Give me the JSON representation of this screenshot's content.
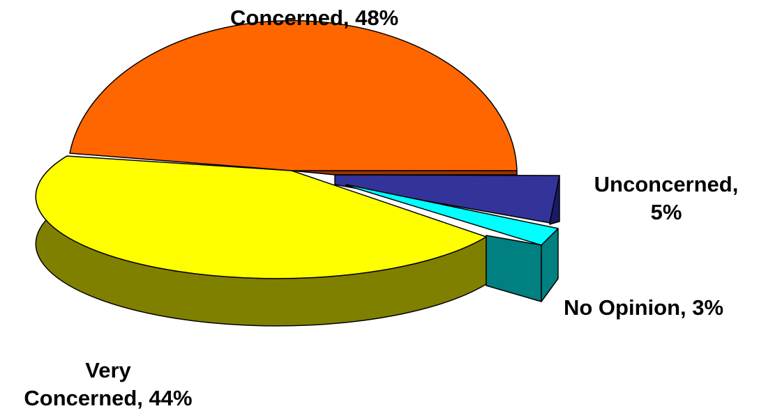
{
  "chart_data": {
    "type": "pie",
    "style": "3d-exploded",
    "slices": [
      {
        "label": "Concerned",
        "value": 48,
        "color": "#FF6600",
        "side_color": "#993300"
      },
      {
        "label": "Unconcerned",
        "value": 5,
        "color": "#333399",
        "side_color": "#1A1A66"
      },
      {
        "label": "No Opinion",
        "value": 3,
        "color": "#00FFFF",
        "side_color": "#008080"
      },
      {
        "label": "Very Concerned",
        "value": 44,
        "color": "#FFFF00",
        "side_color": "#808000"
      }
    ],
    "data_labels": {
      "concerned": "Concerned, 48%",
      "unconcerned_line1": "Unconcerned,",
      "unconcerned_line2": "5%",
      "no_opinion": "No Opinion, 3%",
      "very_concerned_line1": "Very",
      "very_concerned_line2": "Concerned, 44%"
    }
  }
}
